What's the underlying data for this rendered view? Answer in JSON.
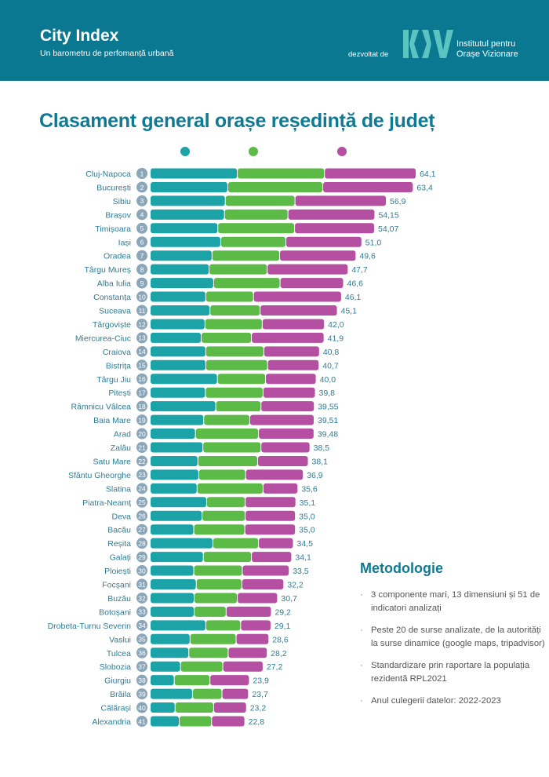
{
  "header": {
    "brand": "City Index",
    "subtitle": "Un barometru de perfomanță urbană",
    "developed_by": "dezvoltat de",
    "logo_text": "IOV",
    "institute_line1": "Institutul pentru",
    "institute_line2": "Orașe Vizionare",
    "background": "#0b7892"
  },
  "chart_data": {
    "type": "bar",
    "orientation": "horizontal",
    "stacked": true,
    "title": "Clasament general orașe reședință de județ",
    "legend": {
      "placement": "top",
      "labels_shown": false
    },
    "colors": [
      "#1ba3a8",
      "#5cba47",
      "#b54fa2"
    ],
    "grid": false,
    "categories": [
      "Cluj-Napoca",
      "București",
      "Sibiu",
      "Brașov",
      "Timișoara",
      "Iași",
      "Oradea",
      "Târgu Mureș",
      "Alba Iulia",
      "Constanța",
      "Suceava",
      "Târgoviște",
      "Miercurea-Ciuc",
      "Craiova",
      "Bistrița",
      "Târgu Jiu",
      "Pitești",
      "Râmnicu Vâlcea",
      "Baia Mare",
      "Arad",
      "Zalău",
      "Satu Mare",
      "Sfântu Gheorghe",
      "Slatina",
      "Piatra-Neamț",
      "Deva",
      "Bacău",
      "Reșita",
      "Galați",
      "Ploiești",
      "Focșani",
      "Buzău",
      "Botoșani",
      "Drobeta-Turnu Severin",
      "Vaslui",
      "Tulcea",
      "Slobozia",
      "Giurgiu",
      "Brăila",
      "Călărași",
      "Alexandria"
    ],
    "ranks": [
      "1",
      "2",
      "3",
      "4",
      "5",
      "6",
      "7",
      "8",
      "9",
      "10",
      "11",
      "12",
      "13",
      "14",
      "15",
      "16",
      "17",
      "18",
      "19",
      "20",
      "21",
      "22",
      "23",
      "24",
      "25",
      "26",
      "27",
      "28",
      "29",
      "30",
      "31",
      "32",
      "33",
      "34",
      "35",
      "36",
      "37",
      "38",
      "39",
      "40",
      "41"
    ],
    "totals": [
      64.1,
      63.4,
      56.9,
      54.15,
      54.07,
      51.0,
      49.6,
      47.7,
      46.6,
      46.1,
      45.1,
      42.0,
      41.9,
      40.8,
      40.7,
      40.0,
      39.8,
      39.55,
      39.51,
      39.48,
      38.5,
      38.1,
      36.9,
      35.6,
      35.1,
      35.0,
      35.0,
      34.5,
      34.1,
      33.5,
      32.2,
      30.7,
      29.2,
      29.1,
      28.6,
      28.2,
      27.2,
      23.9,
      23.7,
      23.2,
      22.8
    ],
    "total_labels": [
      "64,1",
      "63,4",
      "56,9",
      "54,15",
      "54,07",
      "51,0",
      "49,6",
      "47,7",
      "46,6",
      "46,1",
      "45,1",
      "42,0",
      "41,9",
      "40,8",
      "40,7",
      "40,0",
      "39,8",
      "39,55",
      "39,51",
      "39,48",
      "38,5",
      "38,1",
      "36,9",
      "35,6",
      "35,1",
      "35,0",
      "35,0",
      "34,5",
      "34,1",
      "33,5",
      "32,2",
      "30,7",
      "29,2",
      "29,1",
      "28,6",
      "28,2",
      "27,2",
      "23,9",
      "23,7",
      "23,2",
      "22,8"
    ],
    "series": [
      {
        "values": [
          21.0,
          18.7,
          18.1,
          17.9,
          16.3,
          17.0,
          14.9,
          14.2,
          15.3,
          13.4,
          14.4,
          13.2,
          12.3,
          13.4,
          13.4,
          16.2,
          13.3,
          15.8,
          12.9,
          10.9,
          12.7,
          11.5,
          11.7,
          11.3,
          13.6,
          12.5,
          10.5,
          15.1,
          12.8,
          10.5,
          11.1,
          10.6,
          10.6,
          13.4,
          9.6,
          9.3,
          7.3,
          5.8,
          10.2,
          6.0,
          7.0
        ]
      },
      {
        "values": [
          21.0,
          22.9,
          16.8,
          15.3,
          18.5,
          15.7,
          16.3,
          14.0,
          16.0,
          11.5,
          12.1,
          13.8,
          12.1,
          14.0,
          14.9,
          11.6,
          13.9,
          10.9,
          11.1,
          15.2,
          14.0,
          14.4,
          11.3,
          15.9,
          9.3,
          10.4,
          12.3,
          11.0,
          11.6,
          11.7,
          11.0,
          10.4,
          7.7,
          8.4,
          11.1,
          9.5,
          10.2,
          8.6,
          7.1,
          9.3,
          7.8
        ]
      },
      {
        "values": [
          22.1,
          21.8,
          22.0,
          20.95,
          19.27,
          18.3,
          18.4,
          19.5,
          15.3,
          21.2,
          18.6,
          15.0,
          17.5,
          13.4,
          12.4,
          12.2,
          12.6,
          12.85,
          15.51,
          13.38,
          11.8,
          12.2,
          13.9,
          8.4,
          12.2,
          12.1,
          12.2,
          8.4,
          9.7,
          11.3,
          10.1,
          9.7,
          10.9,
          7.3,
          7.9,
          9.4,
          9.7,
          9.5,
          6.4,
          7.9,
          8.0
        ]
      }
    ]
  },
  "methodology": {
    "title": "Metodologie",
    "bullets": [
      "3 componente mari, 13 dimensiuni și 51 de indicatori analizați",
      "Peste 20 de surse analizate, de la autorități la surse dinamice (google maps, tripadvisor)",
      "Standardizare prin raportare la populația rezidentă RPL2021",
      "Anul culegerii datelor: 2022-2023"
    ]
  }
}
